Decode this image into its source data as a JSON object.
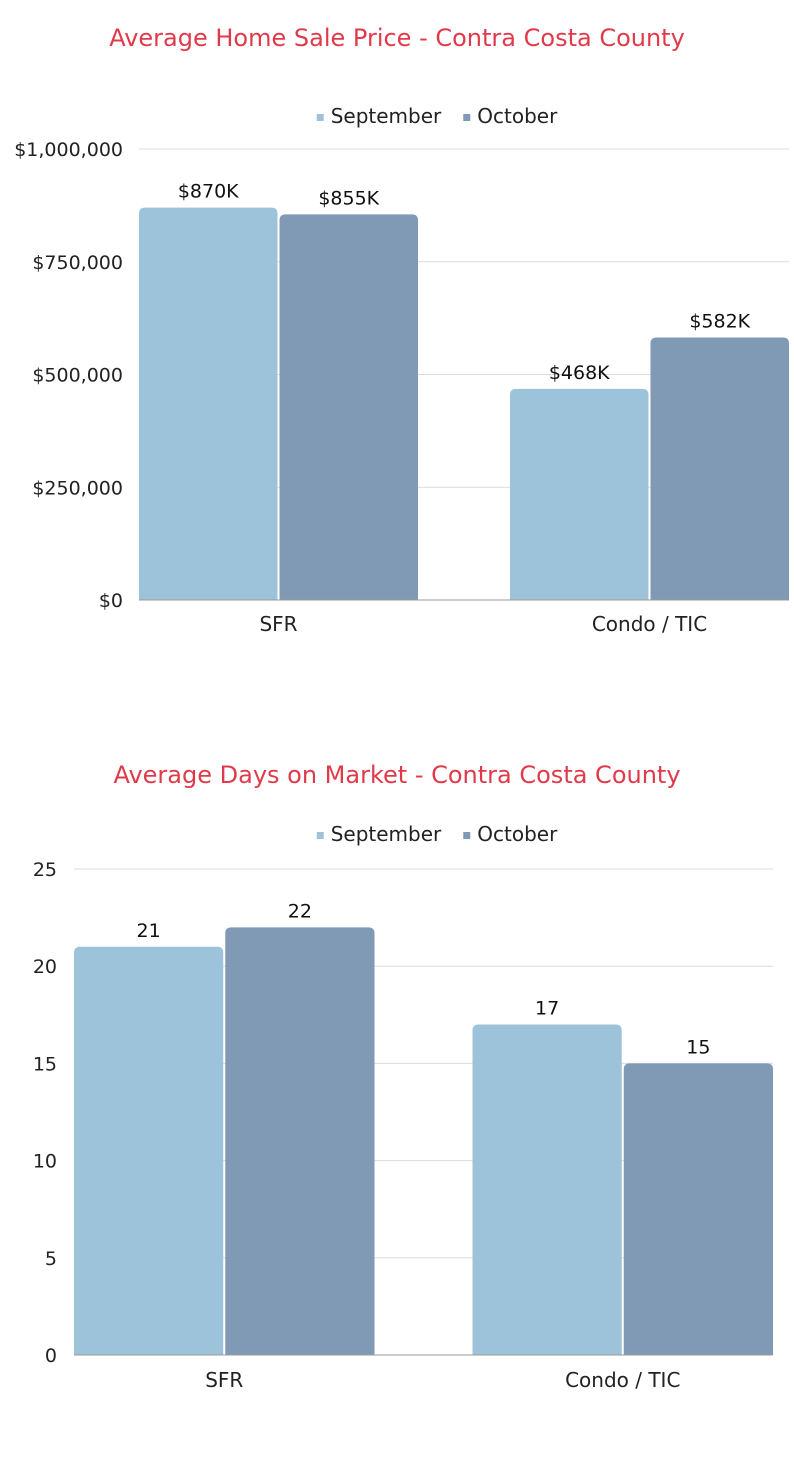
{
  "chart_data": [
    {
      "type": "bar",
      "title": "Average Home Sale Price - Contra Costa County",
      "categories": [
        "SFR",
        "Condo / TIC"
      ],
      "series": [
        {
          "name": "September",
          "values": [
            870000,
            468000
          ],
          "labels": [
            "$870K",
            "$468K"
          ],
          "color": "#9dc3da"
        },
        {
          "name": "October",
          "values": [
            855000,
            582000
          ],
          "labels": [
            "$855K",
            "$582K"
          ],
          "color": "#809ab5"
        }
      ],
      "ylim": [
        0,
        1000000
      ],
      "yticks": [
        0,
        250000,
        500000,
        750000,
        1000000
      ],
      "ytick_labels": [
        "$0",
        "$250,000",
        "$500,000",
        "$750,000",
        "$1,000,000"
      ],
      "xlabel": "",
      "ylabel": "",
      "grid": true,
      "legend": "top-center"
    },
    {
      "type": "bar",
      "title": "Average Days on Market - Contra Costa County",
      "categories": [
        "SFR",
        "Condo / TIC"
      ],
      "series": [
        {
          "name": "September",
          "values": [
            21,
            17
          ],
          "labels": [
            "21",
            "17"
          ],
          "color": "#9dc3da"
        },
        {
          "name": "October",
          "values": [
            22,
            15
          ],
          "labels": [
            "22",
            "15"
          ],
          "color": "#809ab5"
        }
      ],
      "ylim": [
        0,
        25
      ],
      "yticks": [
        0,
        5,
        10,
        15,
        20,
        25
      ],
      "ytick_labels": [
        "0",
        "5",
        "10",
        "15",
        "20",
        "25"
      ],
      "xlabel": "",
      "ylabel": "",
      "grid": true,
      "legend": "top-center"
    }
  ]
}
